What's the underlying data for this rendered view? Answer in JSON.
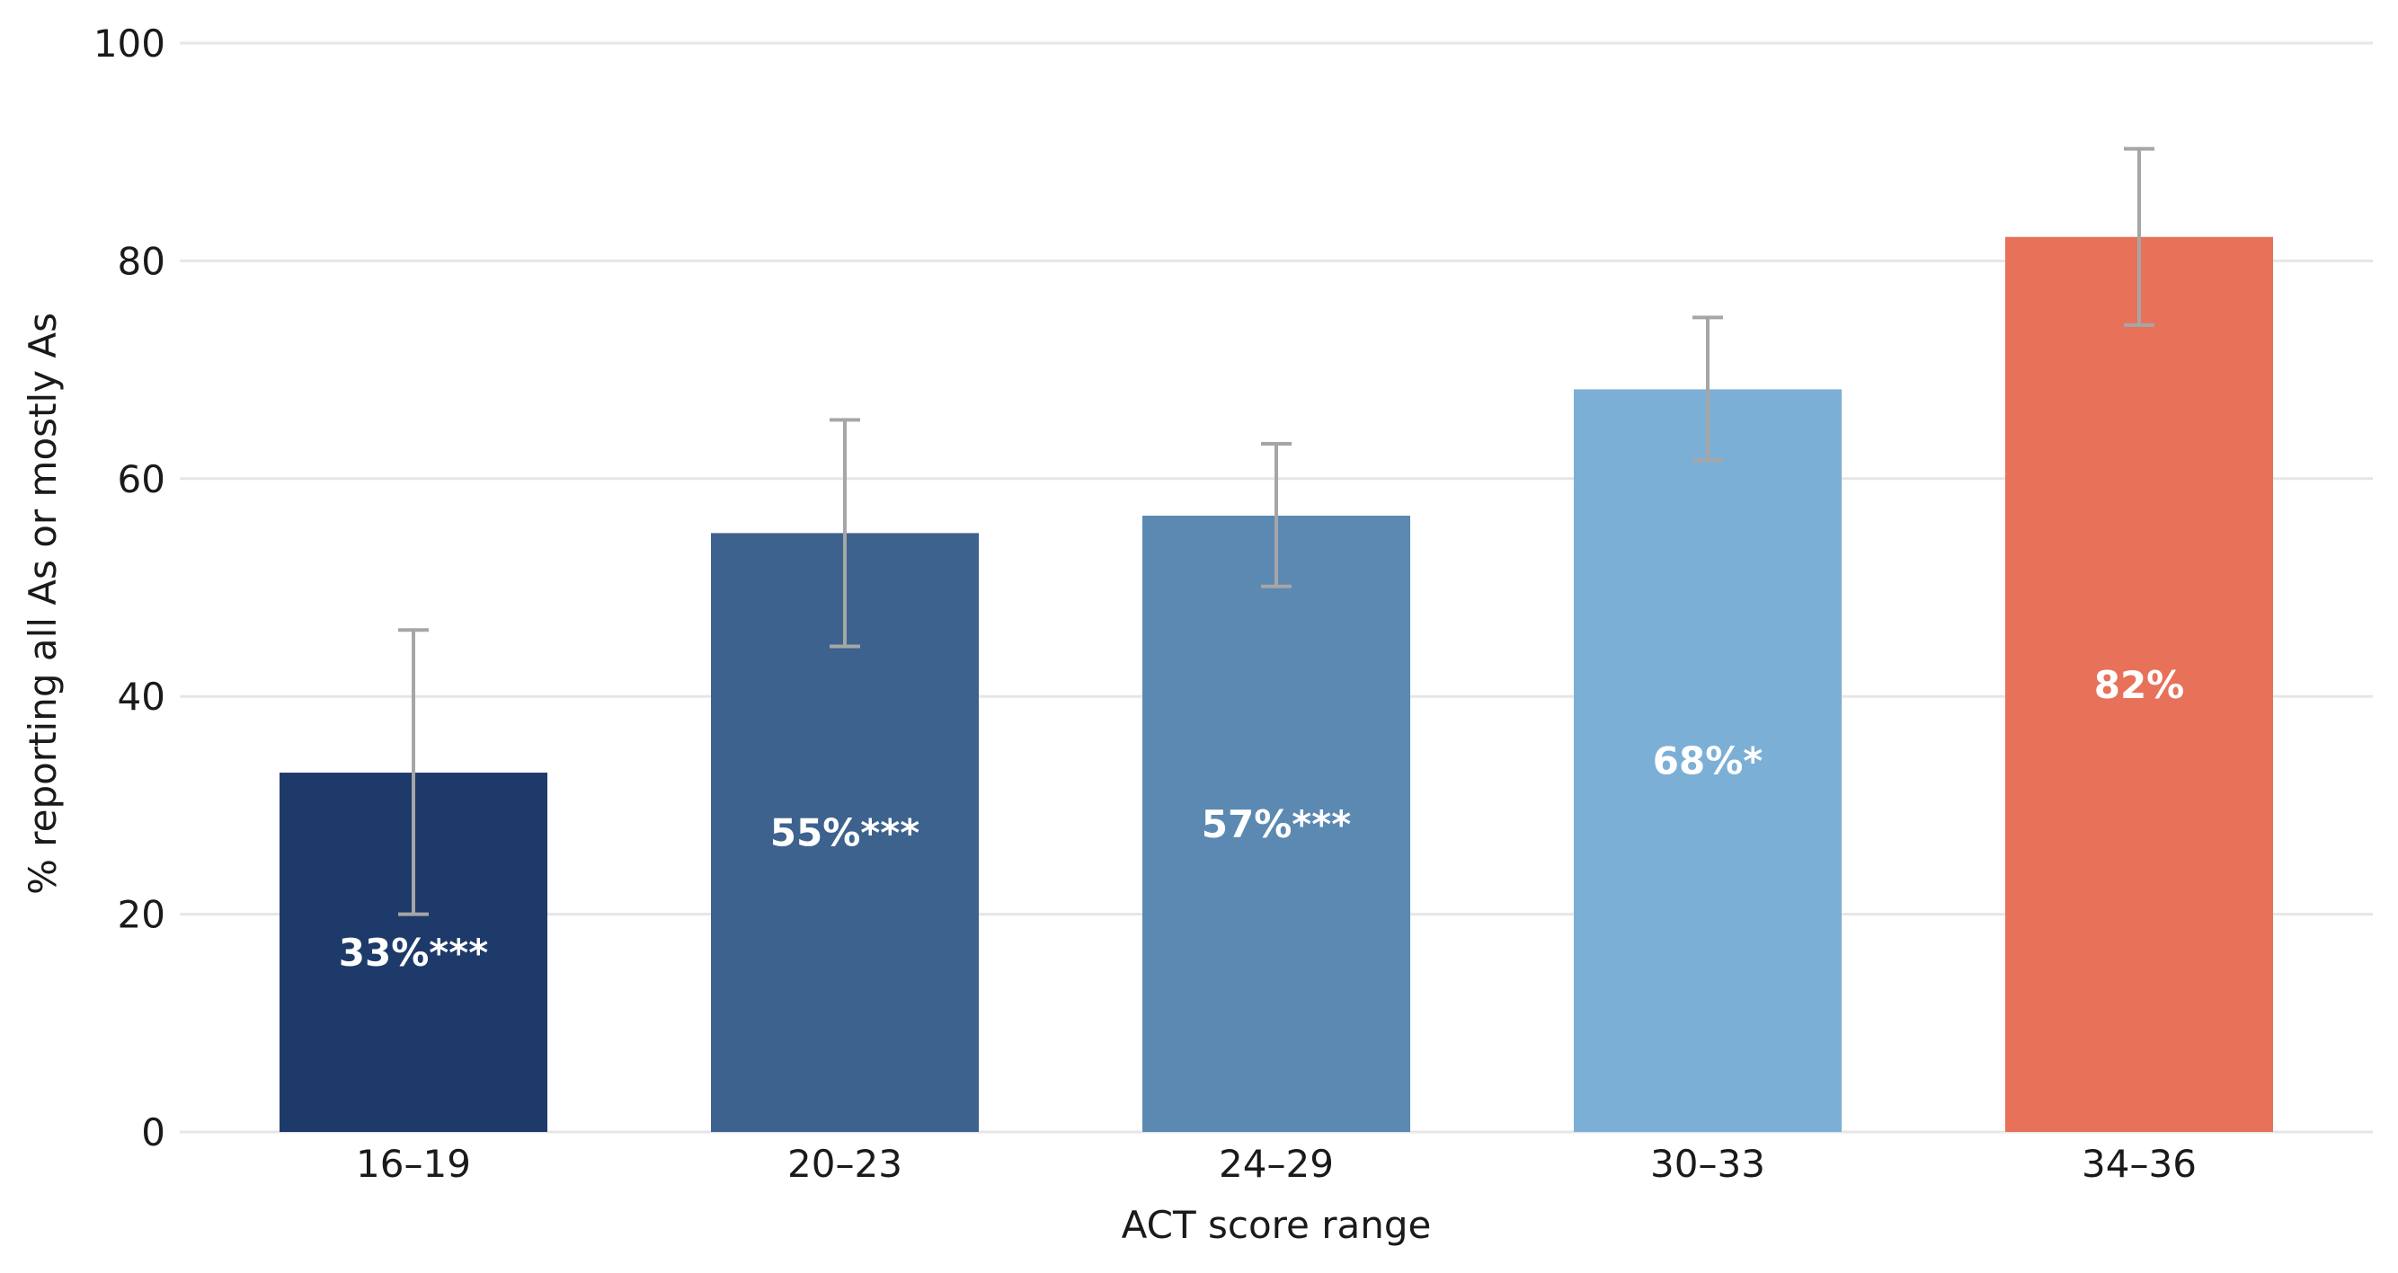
{
  "chart_data": {
    "type": "bar",
    "xlabel": "ACT score range",
    "ylabel": "% reporting all As or mostly As",
    "ylim": [
      0,
      100
    ],
    "yticks": [
      0,
      20,
      40,
      60,
      80,
      100
    ],
    "grid": true,
    "categories": [
      "16–19",
      "20–23",
      "24–29",
      "30–33",
      "34–36"
    ],
    "values": [
      33,
      55,
      56.6,
      68.2,
      82.2
    ],
    "error_low": [
      20,
      44.6,
      50.1,
      61.7,
      74.1
    ],
    "error_high": [
      46.1,
      65.4,
      63.2,
      74.8,
      90.3
    ],
    "bar_labels": [
      "33%***",
      "55%***",
      "57%***",
      "68%*",
      "82%"
    ],
    "colors": [
      "#1e3a6a",
      "#3d628d",
      "#5b89b2",
      "#7cafd5",
      "#e8715a"
    ],
    "error_bar_color": "#a6a6a6",
    "grid_color": "#e6e6e6"
  }
}
